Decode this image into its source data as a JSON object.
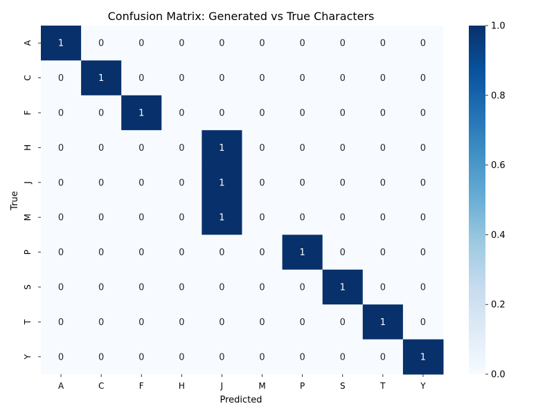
{
  "chart_data": {
    "type": "heatmap",
    "title": "Confusion Matrix: Generated vs True Characters",
    "xlabel": "Predicted",
    "ylabel": "True",
    "x_categories": [
      "A",
      "C",
      "F",
      "H",
      "J",
      "M",
      "P",
      "S",
      "T",
      "Y"
    ],
    "y_categories": [
      "A",
      "C",
      "F",
      "H",
      "J",
      "M",
      "P",
      "S",
      "T",
      "Y"
    ],
    "values": [
      [
        1,
        0,
        0,
        0,
        0,
        0,
        0,
        0,
        0,
        0
      ],
      [
        0,
        1,
        0,
        0,
        0,
        0,
        0,
        0,
        0,
        0
      ],
      [
        0,
        0,
        1,
        0,
        0,
        0,
        0,
        0,
        0,
        0
      ],
      [
        0,
        0,
        0,
        0,
        1,
        0,
        0,
        0,
        0,
        0
      ],
      [
        0,
        0,
        0,
        0,
        1,
        0,
        0,
        0,
        0,
        0
      ],
      [
        0,
        0,
        0,
        0,
        1,
        0,
        0,
        0,
        0,
        0
      ],
      [
        0,
        0,
        0,
        0,
        0,
        0,
        1,
        0,
        0,
        0
      ],
      [
        0,
        0,
        0,
        0,
        0,
        0,
        0,
        1,
        0,
        0
      ],
      [
        0,
        0,
        0,
        0,
        0,
        0,
        0,
        0,
        1,
        0
      ],
      [
        0,
        0,
        0,
        0,
        0,
        0,
        0,
        0,
        0,
        1
      ]
    ],
    "colorbar": {
      "range": [
        0,
        1
      ],
      "ticks": [
        "0.0",
        "0.2",
        "0.4",
        "0.6",
        "0.8",
        "1.0"
      ],
      "low_color": "#f7fbff",
      "high_color": "#08306b",
      "colormap": "Blues"
    },
    "annotations": true,
    "grid": false
  }
}
